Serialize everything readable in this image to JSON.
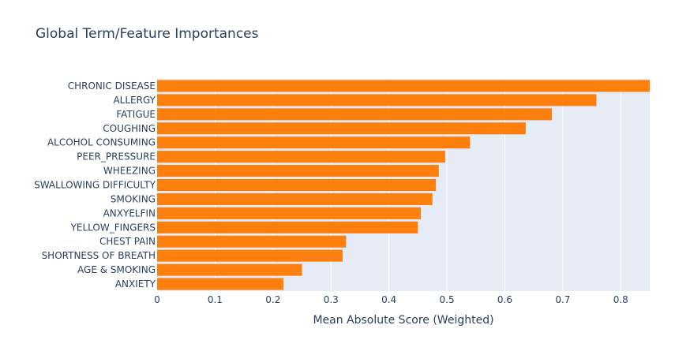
{
  "chart_data": {
    "type": "bar",
    "orientation": "horizontal",
    "title": "Global Term/Feature Importances",
    "xlabel": "Mean Absolute Score (Weighted)",
    "ylabel": "",
    "xlim": [
      0,
      0.85
    ],
    "xticks": [
      0,
      0.1,
      0.2,
      0.3,
      0.4,
      0.5,
      0.6,
      0.7,
      0.8
    ],
    "xtick_labels": [
      "0",
      "0.1",
      "0.2",
      "0.3",
      "0.4",
      "0.5",
      "0.6",
      "0.7",
      "0.8"
    ],
    "grid": true,
    "categories": [
      "CHRONIC DISEASE",
      "ALLERGY",
      "FATIGUE",
      "COUGHING",
      "ALCOHOL CONSUMING",
      "PEER_PRESSURE",
      "WHEEZING",
      "SWALLOWING DIFFICULTY",
      "SMOKING",
      "ANXYELFIN",
      "YELLOW_FINGERS",
      "CHEST PAIN",
      "SHORTNESS OF BREATH",
      "AGE & SMOKING",
      "ANXIETY"
    ],
    "values": [
      0.85,
      0.758,
      0.681,
      0.636,
      0.54,
      0.497,
      0.486,
      0.481,
      0.475,
      0.455,
      0.45,
      0.326,
      0.32,
      0.25,
      0.218
    ],
    "colors": {
      "bar": "#ff7f0e",
      "plot_bg": "#e5ecf6",
      "grid": "#ffffff",
      "text": "#2a3f5f",
      "tick_text": "#2a3f5f"
    }
  }
}
